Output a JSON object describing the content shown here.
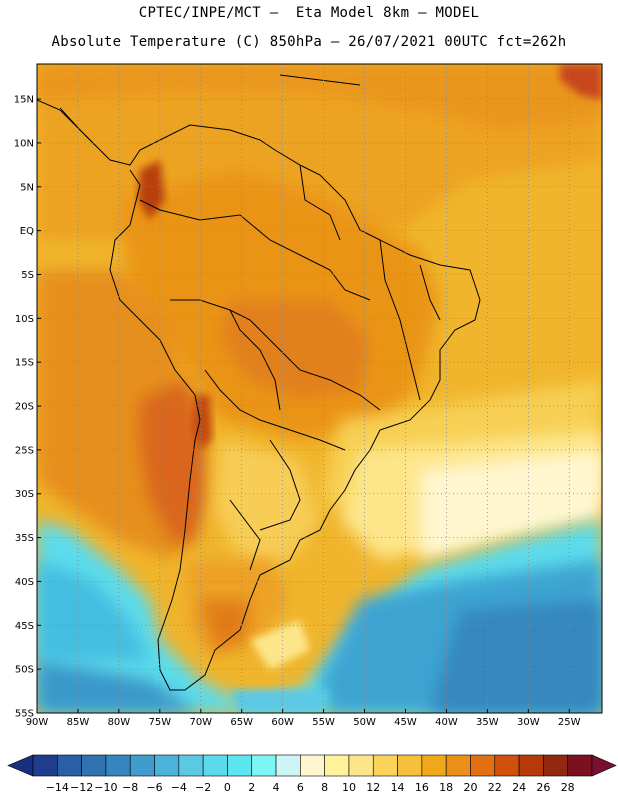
{
  "header": {
    "title_line1": "CPTEC/INPE/MCT –  Eta Model 8km – MODEL",
    "title_line2": "Absolute Temperature (C) 850hPa – 26/07/2021 00UTC fct=262h"
  },
  "map": {
    "lat_labels": [
      "15N",
      "10N",
      "5N",
      "EQ",
      "5S",
      "10S",
      "15S",
      "20S",
      "25S",
      "30S",
      "35S",
      "40S",
      "45S",
      "50S",
      "55S"
    ],
    "lon_labels": [
      "90W",
      "85W",
      "80W",
      "75W",
      "70W",
      "65W",
      "60W",
      "55W",
      "50W",
      "45W",
      "40W",
      "35W",
      "30W",
      "25W"
    ],
    "lat_range": [
      -55,
      19
    ],
    "lon_range": [
      -90,
      -21
    ],
    "grid": true,
    "grid_style": "dotted"
  },
  "colorbar": {
    "labels": [
      "-14",
      "-12",
      "-10",
      "-8",
      "-6",
      "-4",
      "-2",
      "0",
      "2",
      "4",
      "6",
      "8",
      "10",
      "12",
      "14",
      "16",
      "18",
      "20",
      "22",
      "24",
      "26",
      "28"
    ],
    "colors": [
      "#1f3d8f",
      "#2a5ea6",
      "#2f73b0",
      "#3487be",
      "#3f9ccd",
      "#4bb3d9",
      "#5bc9e4",
      "#5cd9ea",
      "#5be6f0",
      "#7df5f5",
      "#cdf5f5",
      "#fff6d0",
      "#fff29a",
      "#fde68a",
      "#fbd35a",
      "#f6c03a",
      "#f0a81a",
      "#ea901a",
      "#e27012",
      "#d0500c",
      "#b63a08",
      "#932810",
      "#7a1020"
    ],
    "low_arrow_color": "#1a2f80",
    "high_arrow_color": "#7a1030"
  }
}
